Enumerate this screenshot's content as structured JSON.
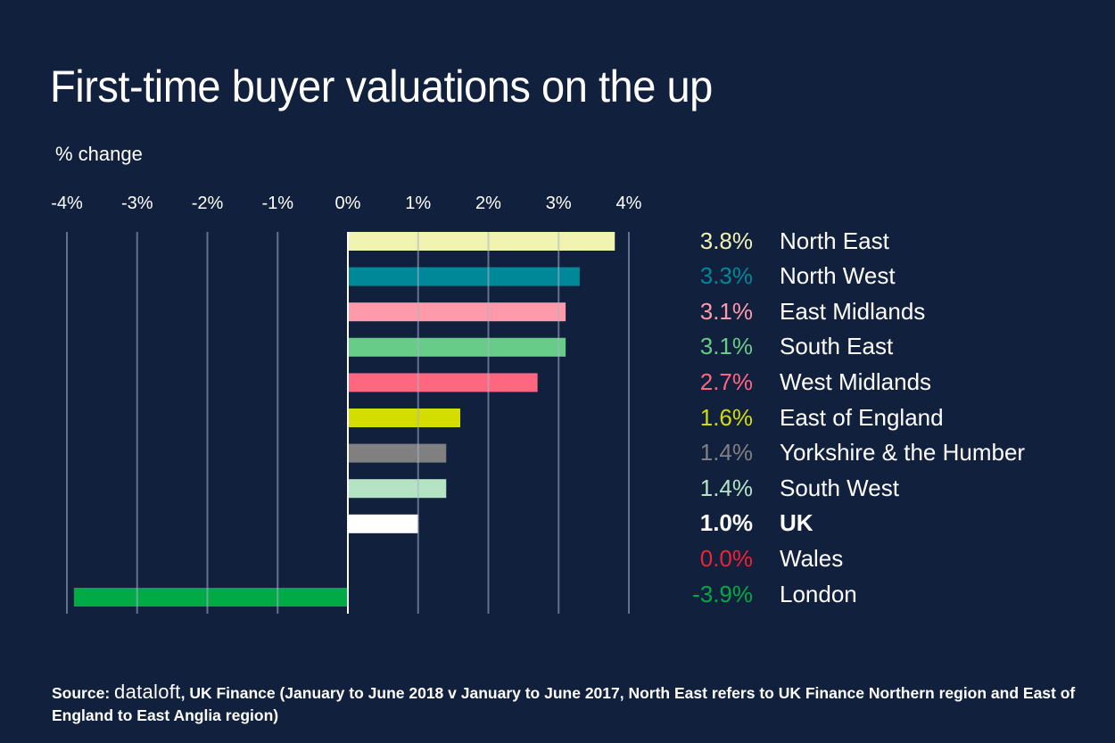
{
  "chart_data": {
    "type": "bar",
    "orientation": "horizontal",
    "title": "First-time buyer valuations on the up",
    "ylabel": "% change",
    "xlabel": "",
    "xlim": [
      -4,
      4
    ],
    "xticks": [
      -4,
      -3,
      -2,
      -1,
      0,
      1,
      2,
      3,
      4
    ],
    "xtick_labels": [
      "-4%",
      "-3%",
      "-2%",
      "-1%",
      "0%",
      "1%",
      "2%",
      "3%",
      "4%"
    ],
    "grid": true,
    "legend_placement": "right",
    "categories": [
      "North East",
      "North West",
      "East Midlands",
      "South East",
      "West Midlands",
      "East of England",
      "Yorkshire & the Humber",
      "South West",
      "UK",
      "Wales",
      "London"
    ],
    "values": [
      3.8,
      3.3,
      3.1,
      3.1,
      2.7,
      1.6,
      1.4,
      1.4,
      1.0,
      0.0,
      -3.9
    ],
    "value_labels": [
      "3.8%",
      "3.3%",
      "3.1%",
      "3.1%",
      "2.7%",
      "1.6%",
      "1.4%",
      "1.4%",
      "1.0%",
      "0.0%",
      "-3.9%"
    ],
    "colors": [
      "#f0f4b0",
      "#008898",
      "#ff9aaa",
      "#66cc88",
      "#ff6680",
      "#d4dd00",
      "#808080",
      "#b4e4c4",
      "#ffffff",
      "#ee2233",
      "#00aa44"
    ],
    "bold": [
      false,
      false,
      false,
      false,
      false,
      false,
      false,
      false,
      true,
      false,
      false
    ]
  },
  "source": {
    "prefix": "Source:",
    "brand": "dataloft",
    "text": ", UK Finance (January to June 2018 v January to June 2017, North East refers to UK Finance Northern region and East of England to East Anglia region)"
  }
}
